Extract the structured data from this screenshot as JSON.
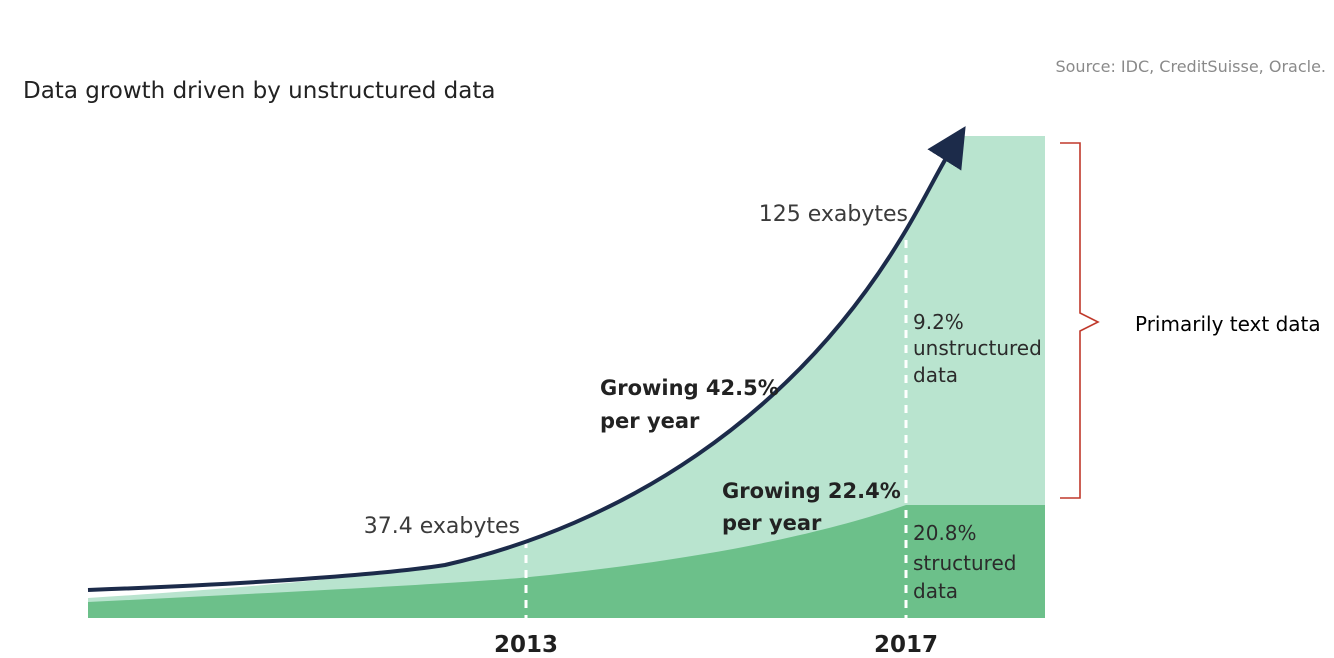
{
  "chart_data": {
    "type": "area",
    "title": "Data growth driven by unstructured data",
    "source": "Source: IDC, CreditSuisse, Oracle.",
    "x_ticks": [
      "2013",
      "2017"
    ],
    "series": [
      {
        "name": "structured data",
        "color": "#6cc08a"
      },
      {
        "name": "unstructured data",
        "color": "#b9e4cf"
      }
    ],
    "total_curve_color": "#1c2b4a",
    "annotations": {
      "start_total": "37.4 exabytes",
      "end_total": "125 exabytes",
      "growth_total_line1": "Growing 42.5%",
      "growth_total_line2": "per year",
      "growth_structured_line1": "Growing 22.4%",
      "growth_structured_line2": "per year",
      "unstructured_share_line1": "9.2%",
      "unstructured_share_line2": "unstructured",
      "unstructured_share_line3": "data",
      "structured_share_line1": "20.8%",
      "structured_share_line2": "structured",
      "structured_share_line3": "data",
      "bracket_label": "Primarily text data",
      "bracket_color": "#c0392b"
    }
  }
}
